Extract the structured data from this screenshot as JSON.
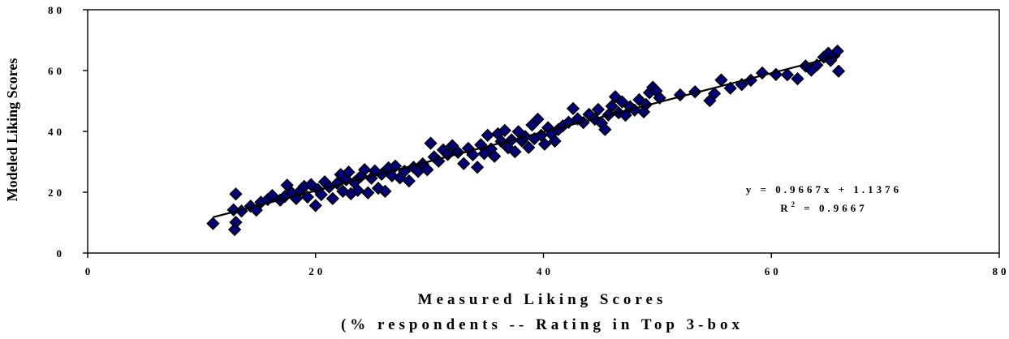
{
  "chart_data": {
    "type": "scatter",
    "title": "",
    "xlabel_line1": "Measured Liking Scores",
    "xlabel_line2": "(% respondents -- Rating in Top 3-box",
    "ylabel": "Modeled Liking Scores",
    "xlim": [
      0,
      80
    ],
    "ylim": [
      0,
      80
    ],
    "xticks": [
      "0",
      "20",
      "40",
      "60",
      "80"
    ],
    "yticks": [
      "0",
      "20",
      "40",
      "60",
      "80"
    ],
    "grid": false,
    "legend": "none",
    "marker": "diamond",
    "marker_color": "#000080",
    "trendline": {
      "type": "linear",
      "slope": 0.9667,
      "intercept": 1.1376,
      "x_range": [
        11,
        66
      ],
      "color": "#000000"
    },
    "annotation": {
      "equation": "y = 0.9667x + 1.1376",
      "r2_prefix": "R",
      "r2_exponent": "2",
      "r2_value": " = 0.9667"
    },
    "points": [
      [
        11.0,
        9.7
      ],
      [
        12.8,
        14.2
      ],
      [
        13.0,
        19.4
      ],
      [
        13.0,
        10.1
      ],
      [
        12.9,
        7.7
      ],
      [
        13.5,
        13.8
      ],
      [
        14.3,
        15.4
      ],
      [
        14.8,
        14.1
      ],
      [
        15.2,
        16.7
      ],
      [
        15.8,
        17.6
      ],
      [
        16.2,
        18.9
      ],
      [
        16.9,
        17.4
      ],
      [
        17.3,
        18.6
      ],
      [
        17.5,
        22.3
      ],
      [
        17.9,
        19.8
      ],
      [
        18.3,
        17.9
      ],
      [
        18.7,
        20.6
      ],
      [
        19.0,
        21.9
      ],
      [
        19.3,
        18.4
      ],
      [
        19.6,
        22.5
      ],
      [
        20.0,
        15.6
      ],
      [
        20.2,
        20.9
      ],
      [
        20.5,
        19.2
      ],
      [
        20.8,
        23.4
      ],
      [
        21.2,
        21.7
      ],
      [
        21.5,
        17.9
      ],
      [
        21.9,
        22.9
      ],
      [
        22.2,
        25.8
      ],
      [
        22.4,
        20.3
      ],
      [
        22.7,
        24.1
      ],
      [
        22.9,
        26.6
      ],
      [
        23.1,
        19.5
      ],
      [
        23.4,
        23.2
      ],
      [
        23.7,
        20.6
      ],
      [
        24.0,
        25.3
      ],
      [
        24.3,
        27.4
      ],
      [
        24.6,
        19.8
      ],
      [
        24.9,
        24.6
      ],
      [
        25.2,
        27.0
      ],
      [
        25.5,
        21.3
      ],
      [
        25.8,
        25.9
      ],
      [
        26.1,
        20.3
      ],
      [
        26.4,
        28.0
      ],
      [
        26.7,
        25.4
      ],
      [
        27.0,
        28.6
      ],
      [
        27.4,
        24.7
      ],
      [
        27.8,
        26.9
      ],
      [
        28.2,
        23.7
      ],
      [
        28.6,
        28.2
      ],
      [
        29.0,
        26.8
      ],
      [
        29.4,
        29.3
      ],
      [
        29.8,
        27.4
      ],
      [
        30.1,
        36.1
      ],
      [
        30.4,
        31.6
      ],
      [
        30.8,
        30.2
      ],
      [
        31.2,
        33.9
      ],
      [
        31.6,
        32.4
      ],
      [
        32.0,
        35.3
      ],
      [
        32.5,
        33.1
      ],
      [
        33.0,
        29.4
      ],
      [
        33.4,
        34.4
      ],
      [
        33.8,
        32.3
      ],
      [
        34.2,
        28.2
      ],
      [
        34.5,
        35.6
      ],
      [
        34.8,
        32.7
      ],
      [
        35.1,
        38.7
      ],
      [
        35.4,
        34.2
      ],
      [
        35.7,
        31.8
      ],
      [
        36.0,
        39.2
      ],
      [
        36.3,
        36.7
      ],
      [
        36.6,
        40.3
      ],
      [
        36.9,
        34.6
      ],
      [
        37.2,
        37.2
      ],
      [
        37.5,
        33.3
      ],
      [
        37.8,
        39.9
      ],
      [
        38.1,
        36.9
      ],
      [
        38.4,
        38.3
      ],
      [
        38.7,
        34.7
      ],
      [
        39.0,
        42.1
      ],
      [
        39.2,
        37.6
      ],
      [
        39.5,
        44.0
      ],
      [
        39.8,
        38.7
      ],
      [
        40.1,
        35.8
      ],
      [
        40.4,
        41.2
      ],
      [
        40.7,
        39.1
      ],
      [
        41.0,
        36.8
      ],
      [
        41.3,
        40.6
      ],
      [
        41.7,
        41.8
      ],
      [
        42.2,
        43.0
      ],
      [
        42.6,
        47.5
      ],
      [
        43.0,
        44.1
      ],
      [
        43.5,
        42.9
      ],
      [
        44.0,
        45.6
      ],
      [
        44.5,
        44.0
      ],
      [
        44.8,
        47.2
      ],
      [
        45.1,
        42.7
      ],
      [
        45.4,
        40.6
      ],
      [
        45.7,
        45.4
      ],
      [
        46.0,
        48.3
      ],
      [
        46.3,
        51.4
      ],
      [
        46.6,
        46.1
      ],
      [
        46.9,
        49.7
      ],
      [
        47.2,
        45.3
      ],
      [
        47.6,
        48.1
      ],
      [
        48.0,
        47.0
      ],
      [
        48.4,
        50.4
      ],
      [
        48.8,
        46.4
      ],
      [
        49.0,
        48.8
      ],
      [
        49.3,
        52.7
      ],
      [
        49.6,
        54.5
      ],
      [
        49.9,
        53.3
      ],
      [
        50.2,
        51.0
      ],
      [
        52.0,
        52.0
      ],
      [
        53.3,
        53.0
      ],
      [
        54.6,
        50.1
      ],
      [
        55.0,
        52.4
      ],
      [
        55.6,
        56.9
      ],
      [
        56.4,
        54.2
      ],
      [
        57.4,
        55.4
      ],
      [
        58.2,
        56.8
      ],
      [
        59.2,
        59.2
      ],
      [
        60.4,
        58.7
      ],
      [
        61.4,
        58.6
      ],
      [
        62.3,
        57.3
      ],
      [
        63.0,
        61.5
      ],
      [
        63.5,
        60.1
      ],
      [
        64.0,
        61.8
      ],
      [
        64.6,
        64.4
      ],
      [
        65.0,
        65.7
      ],
      [
        65.2,
        63.3
      ],
      [
        65.5,
        64.9
      ],
      [
        65.8,
        66.4
      ],
      [
        65.9,
        59.8
      ]
    ]
  }
}
